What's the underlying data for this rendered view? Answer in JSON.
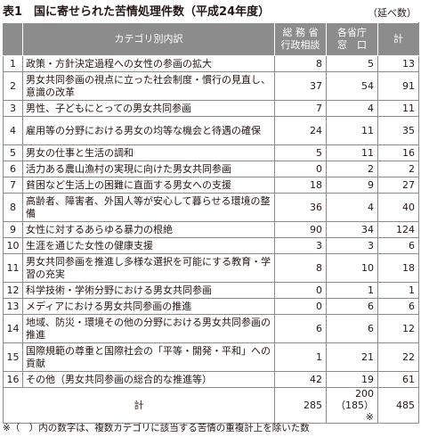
{
  "title": "表1　国に寄せられた苦情処理件数（平成24年度）",
  "unit": "（延べ数）",
  "headers": {
    "no": "",
    "category": "カテゴリ別内訳",
    "col1_line1": "総 務 省",
    "col1_line2": "行政相談",
    "col2_line1": "各省庁",
    "col2_line2": "窓　口",
    "col3": "計"
  },
  "rows": [
    {
      "no": "1",
      "category": "政策・方針決定過程への女性の参画の拡大",
      "soumu": "8",
      "kakusho": "5",
      "total": "13"
    },
    {
      "no": "2",
      "category": "男女共同参画の視点に立った社会制度・慣行の見直し、意識の改革",
      "soumu": "37",
      "kakusho": "54",
      "total": "91"
    },
    {
      "no": "3",
      "category": "男性、子どもにとっての男女共同参画",
      "soumu": "7",
      "kakusho": "4",
      "total": "11"
    },
    {
      "no": "4",
      "category": "雇用等の分野における男女の均等な機会と待遇の確保",
      "soumu": "24",
      "kakusho": "11",
      "total": "35"
    },
    {
      "no": "5",
      "category": "男女の仕事と生活の調和",
      "soumu": "5",
      "kakusho": "11",
      "total": "16"
    },
    {
      "no": "6",
      "category": "活力ある農山漁村の実現に向けた男女共同参画",
      "soumu": "0",
      "kakusho": "2",
      "total": "2"
    },
    {
      "no": "7",
      "category": "貧困など生活上の困難に直面する男女への支援",
      "soumu": "18",
      "kakusho": "9",
      "total": "27"
    },
    {
      "no": "8",
      "category": "高齢者、障害者、外国人等が安心して暮らせる環境の整備",
      "soumu": "36",
      "kakusho": "4",
      "total": "40"
    },
    {
      "no": "9",
      "category": "女性に対するあらゆる暴力の根絶",
      "soumu": "90",
      "kakusho": "34",
      "total": "124"
    },
    {
      "no": "10",
      "category": "生涯を通じた女性の健康支援",
      "soumu": "3",
      "kakusho": "3",
      "total": "6"
    },
    {
      "no": "11",
      "category": "男女共同参画を推進し多様な選択を可能にする教育・学習の充実",
      "soumu": "8",
      "kakusho": "10",
      "total": "18"
    },
    {
      "no": "12",
      "category": "科学技術・学術分野における男女共同参画",
      "soumu": "0",
      "kakusho": "1",
      "total": "1"
    },
    {
      "no": "13",
      "category": "メディアにおける男女共同参画の推進",
      "soumu": "0",
      "kakusho": "6",
      "total": "6"
    },
    {
      "no": "14",
      "category": "地域、防災・環境その他の分野における男女共同参画の推進",
      "soumu": "6",
      "kakusho": "6",
      "total": "12"
    },
    {
      "no": "15",
      "category": "国際規範の尊重と国際社会の「平等・開発・平和」への貢献",
      "soumu": "1",
      "kakusho": "21",
      "total": "22"
    },
    {
      "no": "16",
      "category": "その他（男女共同参画の総合的な推進等）",
      "soumu": "42",
      "kakusho": "19",
      "total": "61"
    }
  ],
  "total_row": {
    "label": "計",
    "soumu": "285",
    "kakusho_line1": "200",
    "kakusho_line2": "（185）※",
    "total": "485"
  },
  "footnote": "※（　）内の数字は、複数カテゴリに該当する苦情の重複計上を除いた数"
}
